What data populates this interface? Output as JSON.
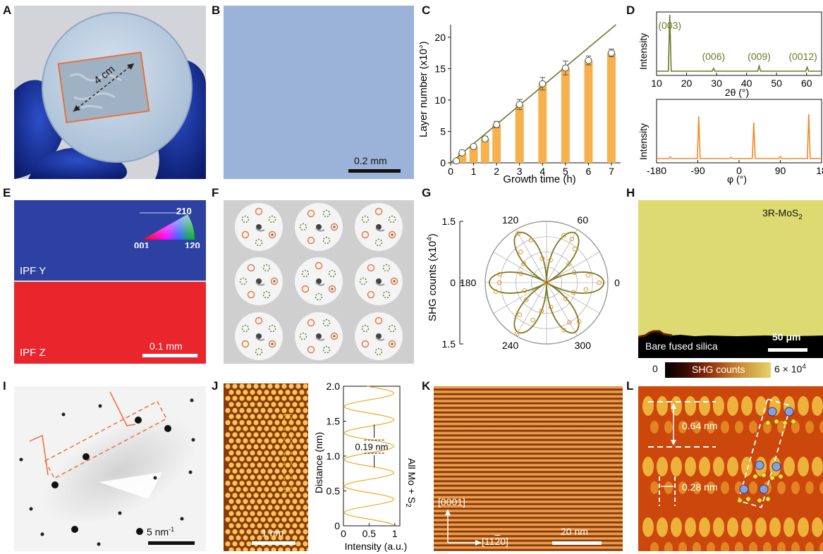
{
  "panel_letters": [
    "A",
    "B",
    "C",
    "D",
    "E",
    "F",
    "G",
    "H",
    "I",
    "J",
    "K",
    "L"
  ],
  "panel_a": {
    "dimension_label": "4 cm"
  },
  "panel_b": {
    "scale_label": "0.2 mm"
  },
  "panel_c": {
    "chart_data": {
      "type": "bar",
      "xlabel": "Growth time (h)",
      "ylabel": "Layer number (x10",
      "ylabel_exp": "3",
      "ylabel_close": ")",
      "xlim": [
        0,
        7.4
      ],
      "ylim": [
        0,
        22
      ],
      "x_ticks": [
        "0",
        "1",
        "2",
        "3",
        "4",
        "5",
        "6",
        "7"
      ],
      "y_ticks": [
        "0",
        "5",
        "10",
        "15",
        "20"
      ],
      "x": [
        0.25,
        0.5,
        1,
        1.5,
        2,
        3,
        4,
        5,
        6,
        7
      ],
      "values": [
        0.3,
        1.6,
        2.6,
        3.8,
        6.1,
        9.3,
        12.6,
        15.1,
        16.3,
        17.5
      ],
      "errors": [
        0.2,
        0.3,
        0.3,
        0.4,
        0.5,
        0.8,
        1.0,
        1.1,
        0.7,
        0.6
      ],
      "fit_line": {
        "x": [
          0,
          7.2
        ],
        "y": [
          0,
          22
        ]
      }
    }
  },
  "panel_d": {
    "top": {
      "chart_data": {
        "type": "line",
        "xlabel": "2θ (°)",
        "ylabel": "Intensity",
        "xlim": [
          10,
          65
        ],
        "x_ticks": [
          "10",
          "20",
          "30",
          "40",
          "50",
          "60"
        ],
        "peaks": [
          {
            "x": 14.4,
            "height": 1.0,
            "label": "(003)"
          },
          {
            "x": 29.0,
            "height": 0.05,
            "label": "(006)"
          },
          {
            "x": 44.2,
            "height": 0.09,
            "label": "(009)"
          },
          {
            "x": 60.2,
            "height": 0.07,
            "label": "(0012)"
          }
        ]
      }
    },
    "bottom": {
      "chart_data": {
        "type": "line",
        "xlabel": "φ (°)",
        "ylabel": "Intensity",
        "xlim": [
          -180,
          180
        ],
        "x_ticks": [
          "-180",
          "-90",
          "0",
          "90",
          "18"
        ],
        "peaks": [
          {
            "x": -150,
            "height": 0.04
          },
          {
            "x": -88,
            "height": 1.0
          },
          {
            "x": -18,
            "height": 0.03
          },
          {
            "x": 32,
            "height": 0.85
          },
          {
            "x": 90,
            "height": 0.05
          },
          {
            "x": 152,
            "height": 1.05
          }
        ]
      }
    }
  },
  "panel_e": {
    "top_label": "IPF Y",
    "bottom_label": "IPF Z",
    "legend": {
      "top": "210",
      "left": "001",
      "right": "120"
    },
    "scale_label": "0.1 mm",
    "colors": {
      "top": "#2d41a3",
      "bottom": "#e8262c"
    }
  },
  "panel_f": {
    "pattern_count": 9,
    "colors": {
      "orange": "#e8713c",
      "green": "#5a7a2c"
    }
  },
  "panel_g": {
    "chart_data": {
      "type": "polar",
      "ylabel": "SHG counts (x10",
      "ylabel_exp": "4",
      "ylabel_close": ")",
      "r_ticks": [
        "1.5",
        "0",
        "1.5"
      ],
      "angle_labels": [
        "120",
        "60",
        "180",
        "0",
        "240",
        "300"
      ],
      "petal_angles_deg": [
        0,
        60,
        120,
        180,
        240,
        300
      ],
      "r_max": 1.5,
      "r_peak": 1.4
    }
  },
  "panel_h": {
    "sample_label": "3R-MoS",
    "sample_label_sub": "2",
    "substrate_label": "Bare fused silica",
    "scale_label": "50 μm",
    "colorbar": {
      "min": "0",
      "title": "SHG counts",
      "max": "6 × 10",
      "max_exp": "4"
    }
  },
  "panel_i": {
    "scale_label": "5 nm",
    "scale_exp": "-1"
  },
  "panel_j": {
    "scale_label": "1 nm",
    "chart_data": {
      "type": "line",
      "xlabel": "Intensity (a.u.)",
      "ylabel": "Distance (nm)",
      "xlim": [
        0,
        1.1
      ],
      "ylim": [
        0,
        2.0
      ],
      "x_ticks": [
        "0",
        "0.5",
        "1"
      ],
      "y_ticks": [
        "0",
        "0.5",
        "1.0",
        "1.5",
        "2.0"
      ],
      "period_nm": 0.19,
      "annotation": "0.19 nm",
      "side_label": "All Mo + S",
      "side_label_sub": "2"
    }
  },
  "panel_k": {
    "dir_vertical": "[0001]",
    "dir_horizontal": "[11",
    "dir_horizontal_bar": "2",
    "dir_horizontal_end": "0]",
    "scale_label": "20 nm"
  },
  "panel_l": {
    "spacing_vertical": "0.64 nm",
    "spacing_horizontal": "0.28 nm"
  }
}
